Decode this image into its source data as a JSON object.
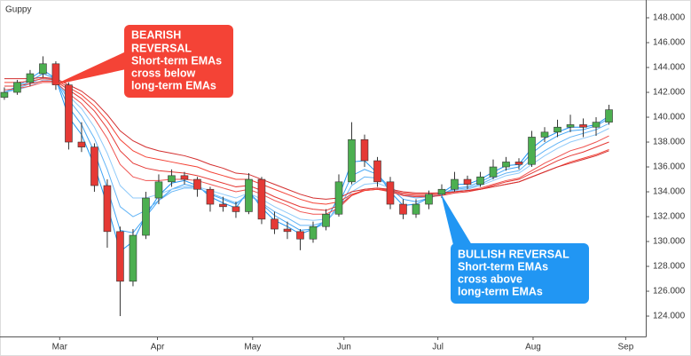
{
  "chart_data": {
    "type": "candlestick",
    "title": "Guppy",
    "xlim": [
      -0.34,
      49.86
    ],
    "xticks": [
      {
        "value": 4.3,
        "label": "Mar"
      },
      {
        "value": 11.9,
        "label": "Apr"
      },
      {
        "value": 19.3,
        "label": "May"
      },
      {
        "value": 26.4,
        "label": "Jun"
      },
      {
        "value": 33.7,
        "label": "Jul"
      },
      {
        "value": 41.1,
        "label": "Aug"
      },
      {
        "value": 48.3,
        "label": "Sep"
      }
    ],
    "ylim": [
      122.36,
      149.43
    ],
    "yticks": [
      {
        "value": 124,
        "label": "124.000"
      },
      {
        "value": 126,
        "label": "126.000"
      },
      {
        "value": 128,
        "label": "128.000"
      },
      {
        "value": 130,
        "label": "130.000"
      },
      {
        "value": 132,
        "label": "132.000"
      },
      {
        "value": 134,
        "label": "134.000"
      },
      {
        "value": 136,
        "label": "136.000"
      },
      {
        "value": 138,
        "label": "138.000"
      },
      {
        "value": 140,
        "label": "140.000"
      },
      {
        "value": 142,
        "label": "142.000"
      },
      {
        "value": 144,
        "label": "144.000"
      },
      {
        "value": 146,
        "label": "146.000"
      },
      {
        "value": 148,
        "label": "148.000"
      }
    ],
    "grid": false,
    "up_color": "#4caf50",
    "down_color": "#e53935",
    "open": [
      141.6,
      142.0,
      142.8,
      143.5,
      144.3,
      142.6,
      138.0,
      137.6,
      134.5,
      130.8,
      126.8,
      130.5,
      133.5,
      134.8,
      135.3,
      135.0,
      134.2,
      133.0,
      132.8,
      132.4,
      135.0,
      131.8,
      131.0,
      130.8,
      130.2,
      131.2,
      132.2,
      134.8,
      138.2,
      136.5,
      134.8,
      133.0,
      132.2,
      133.0,
      133.8,
      134.2,
      135.0,
      134.6,
      135.2,
      136.0,
      136.4,
      136.2,
      138.4,
      138.8,
      139.2,
      139.4,
      139.2,
      139.6
    ],
    "high": [
      142.4,
      143.0,
      143.8,
      144.9,
      144.5,
      142.8,
      139.6,
      137.9,
      135.0,
      131.2,
      131.0,
      134.0,
      135.4,
      135.8,
      135.6,
      135.2,
      134.4,
      133.6,
      133.2,
      135.5,
      135.2,
      132.4,
      131.6,
      131.0,
      131.6,
      132.6,
      135.4,
      139.6,
      138.6,
      136.8,
      135.2,
      133.4,
      133.4,
      134.1,
      134.6,
      135.6,
      135.3,
      135.6,
      136.6,
      136.8,
      136.7,
      138.9,
      139.2,
      139.8,
      140.2,
      139.9,
      140.0,
      141.0
    ],
    "low": [
      141.4,
      141.8,
      142.5,
      143.2,
      142.2,
      137.4,
      137.2,
      134.0,
      129.5,
      124.0,
      126.4,
      130.2,
      133.0,
      134.4,
      134.6,
      133.6,
      132.4,
      132.4,
      131.9,
      132.2,
      131.4,
      130.6,
      130.2,
      129.3,
      129.9,
      130.9,
      132.0,
      134.6,
      136.0,
      134.4,
      132.6,
      131.8,
      131.9,
      132.6,
      133.5,
      134.0,
      134.2,
      134.4,
      135.0,
      135.7,
      135.8,
      136.0,
      138.0,
      138.4,
      138.8,
      138.4,
      138.5,
      139.4
    ],
    "close": [
      142.0,
      142.8,
      143.5,
      144.3,
      142.6,
      138.0,
      137.6,
      134.5,
      130.8,
      126.8,
      130.5,
      133.5,
      134.8,
      135.3,
      135.0,
      134.2,
      133.0,
      132.8,
      132.4,
      135.0,
      131.8,
      131.0,
      130.8,
      130.2,
      131.2,
      132.2,
      134.8,
      138.2,
      136.5,
      134.8,
      133.0,
      132.2,
      133.0,
      133.8,
      134.2,
      135.0,
      134.6,
      135.2,
      136.0,
      136.4,
      136.2,
      138.4,
      138.8,
      139.2,
      139.4,
      139.2,
      139.6,
      140.6
    ],
    "series": [
      {
        "color": "#2196f3",
        "values": [
          142.0,
          142.5,
          143.1,
          143.8,
          143.1,
          140.0,
          138.6,
          136.1,
          132.9,
          129.2,
          130.0,
          132.1,
          133.7,
          134.7,
          134.9,
          134.5,
          133.6,
          133.1,
          132.7,
          134.1,
          132.7,
          131.7,
          131.2,
          130.6,
          131.0,
          131.7,
          133.6,
          136.4,
          136.5,
          135.5,
          134.0,
          132.9,
          133.0,
          133.5,
          133.9,
          134.6,
          134.6,
          135.0,
          135.6,
          136.1,
          136.2,
          137.5,
          138.3,
          138.8,
          139.2,
          139.2,
          139.4,
          140.1
        ]
      },
      {
        "color": "#42a5f5",
        "values": [
          142.0,
          142.4,
          142.9,
          143.5,
          143.1,
          140.8,
          139.4,
          137.2,
          134.3,
          130.9,
          130.7,
          132.0,
          133.3,
          134.2,
          134.6,
          134.4,
          133.8,
          133.4,
          133.0,
          133.9,
          133.0,
          132.1,
          131.5,
          130.9,
          131.0,
          131.5,
          133.0,
          135.3,
          135.8,
          135.4,
          134.3,
          133.4,
          133.2,
          133.5,
          133.8,
          134.3,
          134.4,
          134.8,
          135.3,
          135.8,
          136.0,
          137.1,
          137.9,
          138.5,
          138.9,
          139.0,
          139.3,
          139.9
        ]
      },
      {
        "color": "#64b5f6",
        "values": [
          142.0,
          142.3,
          142.7,
          143.2,
          143.0,
          141.4,
          140.1,
          138.3,
          135.8,
          132.8,
          132.0,
          132.5,
          133.3,
          134.0,
          134.3,
          134.3,
          133.9,
          133.5,
          133.1,
          133.7,
          133.1,
          132.4,
          131.9,
          131.3,
          131.3,
          131.6,
          132.7,
          134.5,
          135.2,
          135.1,
          134.4,
          133.7,
          133.5,
          133.6,
          133.8,
          134.2,
          134.3,
          134.6,
          135.1,
          135.5,
          135.7,
          136.6,
          137.3,
          137.9,
          138.4,
          138.7,
          139.0,
          139.5
        ]
      },
      {
        "color": "#90caf9",
        "values": [
          142.0,
          142.2,
          142.5,
          143.0,
          142.9,
          141.7,
          140.7,
          139.2,
          137.1,
          134.5,
          133.5,
          133.5,
          133.8,
          134.2,
          134.4,
          134.4,
          134.1,
          133.8,
          133.5,
          133.9,
          133.4,
          132.8,
          132.3,
          131.8,
          131.7,
          131.8,
          132.6,
          134.0,
          134.6,
          134.7,
          134.3,
          133.8,
          133.6,
          133.7,
          133.8,
          134.1,
          134.2,
          134.5,
          134.9,
          135.3,
          135.5,
          136.2,
          136.9,
          137.5,
          138.0,
          138.3,
          138.6,
          139.1
        ]
      },
      {
        "color": "#ef5350",
        "values": [
          142.2,
          142.3,
          142.5,
          142.8,
          142.8,
          141.9,
          141.1,
          139.9,
          138.3,
          136.2,
          135.2,
          134.9,
          134.9,
          135.0,
          135.0,
          134.9,
          134.6,
          134.3,
          134.0,
          134.2,
          133.8,
          133.3,
          132.9,
          132.4,
          132.2,
          132.2,
          132.7,
          133.7,
          134.2,
          134.3,
          134.1,
          133.8,
          133.7,
          133.7,
          133.8,
          134.0,
          134.1,
          134.3,
          134.6,
          134.9,
          135.1,
          135.7,
          136.3,
          136.8,
          137.3,
          137.6,
          138.0,
          138.5
        ]
      },
      {
        "color": "#e53935",
        "values": [
          142.5,
          142.5,
          142.7,
          142.9,
          142.9,
          142.2,
          141.5,
          140.5,
          139.1,
          137.3,
          136.3,
          135.9,
          135.7,
          135.6,
          135.5,
          135.3,
          135.0,
          134.7,
          134.4,
          134.5,
          134.1,
          133.6,
          133.2,
          132.8,
          132.6,
          132.5,
          132.9,
          133.7,
          134.1,
          134.2,
          134.0,
          133.7,
          133.6,
          133.6,
          133.7,
          133.9,
          134.0,
          134.2,
          134.5,
          134.8,
          135.0,
          135.5,
          136.0,
          136.5,
          136.9,
          137.2,
          137.6,
          138.0
        ]
      },
      {
        "color": "#f44336",
        "values": [
          142.8,
          142.8,
          142.9,
          143.1,
          143.0,
          142.4,
          141.8,
          140.9,
          139.7,
          138.2,
          137.3,
          136.8,
          136.6,
          136.4,
          136.2,
          136.0,
          135.6,
          135.3,
          135.0,
          135.0,
          134.6,
          134.2,
          133.8,
          133.4,
          133.1,
          133.0,
          133.2,
          133.8,
          134.1,
          134.2,
          134.1,
          133.9,
          133.8,
          133.8,
          133.9,
          134.0,
          134.1,
          134.2,
          134.4,
          134.6,
          134.8,
          135.2,
          135.6,
          136.0,
          136.4,
          136.7,
          137.0,
          137.4
        ]
      },
      {
        "color": "#d32f2f",
        "values": [
          143.1,
          143.1,
          143.1,
          143.2,
          143.1,
          142.6,
          142.1,
          141.3,
          140.2,
          138.9,
          138.1,
          137.6,
          137.3,
          137.1,
          136.9,
          136.6,
          136.2,
          135.9,
          135.5,
          135.4,
          135.0,
          134.6,
          134.2,
          133.8,
          133.5,
          133.4,
          133.5,
          134.0,
          134.2,
          134.3,
          134.2,
          134.0,
          133.9,
          133.9,
          133.9,
          134.0,
          134.1,
          134.2,
          134.4,
          134.6,
          134.8,
          135.2,
          135.6,
          136.0,
          136.3,
          136.6,
          136.9,
          137.3
        ]
      }
    ],
    "annotations": [
      {
        "lines": [
          "BEARISH",
          "REVERSAL",
          "Short-term EMAs",
          "cross below",
          "long-term EMAs"
        ]
      },
      {
        "lines": [
          "BULLISH REVERSAL",
          "Short-term EMAs",
          "cross above",
          "long-term EMAs"
        ]
      }
    ]
  }
}
